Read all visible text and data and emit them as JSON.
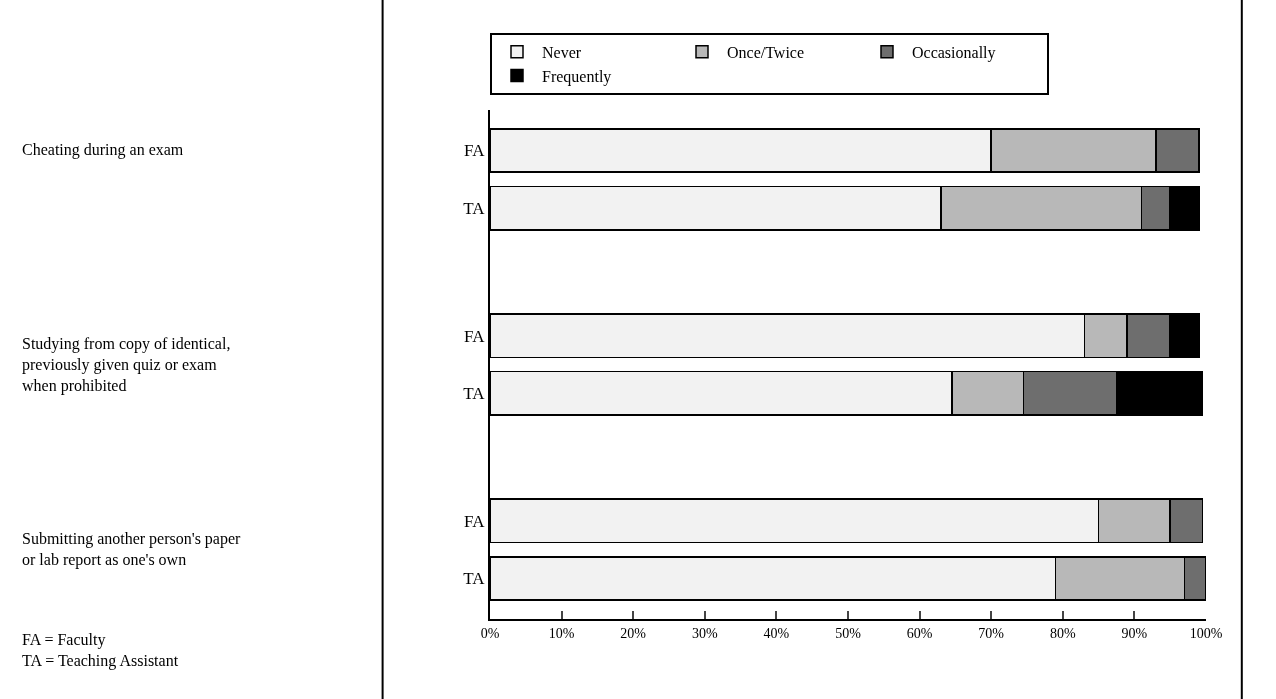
{
  "chart_data": {
    "type": "bar",
    "orientation": "horizontal",
    "stacked": true,
    "categories": [
      "FA",
      "TA",
      "FA",
      "TA",
      "FA",
      "TA"
    ],
    "series": [
      {
        "name": "Never",
        "color": "#f2f2f2",
        "values": [
          70,
          63,
          83,
          64.5,
          85,
          79
        ]
      },
      {
        "name": "Once/Twice",
        "color": "#b8b8b8",
        "values": [
          23,
          28,
          6,
          10,
          10,
          18
        ]
      },
      {
        "name": "Occasionally",
        "color": "#6e6e6e",
        "values": [
          6,
          4,
          6,
          13,
          4.5,
          3
        ]
      },
      {
        "name": "Frequently",
        "color": "#000000",
        "values": [
          0,
          4,
          4,
          12,
          0,
          0
        ]
      }
    ],
    "xlim": [
      0,
      100
    ],
    "xticks": [
      {
        "value": 0,
        "label": "0%"
      },
      {
        "value": 10,
        "label": "10%"
      },
      {
        "value": 20,
        "label": "20%"
      },
      {
        "value": 30,
        "label": "30%"
      },
      {
        "value": 40,
        "label": "40%"
      },
      {
        "value": 50,
        "label": "50%"
      },
      {
        "value": 60,
        "label": "60%"
      },
      {
        "value": 70,
        "label": "70%"
      },
      {
        "value": 80,
        "label": "80%"
      },
      {
        "value": 90,
        "label": "90%"
      },
      {
        "value": 100,
        "label": "100%"
      }
    ],
    "annotations": [
      "Cheating during an exam",
      "Studying from copy of identical,\npreviously given quiz or exam\nwhen prohibited",
      "Submitting another person's paper\nor lab report as one's own",
      "FA = Faculty\nTA = Teaching Assistant"
    ],
    "grid": false,
    "legend": "top"
  }
}
